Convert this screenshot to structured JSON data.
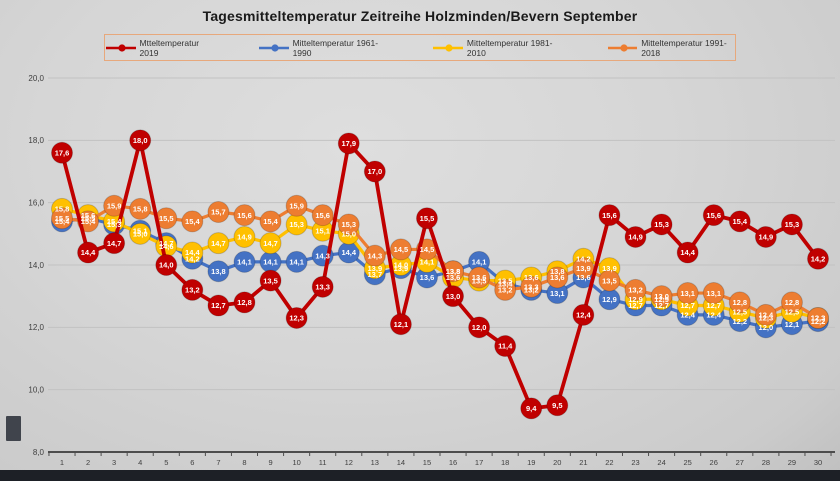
{
  "title": "Tagesmitteltemperatur Zeitreihe Holzminden/Bevern September",
  "colors": {
    "background": "#d6d6d6",
    "gridline": "#c2c2c2",
    "axis": "#4d4d4d",
    "legend_border": "#e7a87c",
    "bottom_bar": "#1d2026"
  },
  "chart_data": {
    "type": "line",
    "title": "Tagesmitteltemperatur Zeitreihe Holzminden/Bevern September",
    "xlabel": "",
    "ylabel": "",
    "x": [
      1,
      2,
      3,
      4,
      5,
      6,
      7,
      8,
      9,
      10,
      11,
      12,
      13,
      14,
      15,
      16,
      17,
      18,
      19,
      20,
      21,
      22,
      23,
      24,
      25,
      26,
      27,
      28,
      29,
      30
    ],
    "ylim": [
      8,
      20
    ],
    "ytick_step": 2,
    "ytick_labels": [
      "8,0",
      "10,0",
      "12,0",
      "14,0",
      "16,0",
      "18,0",
      "20,0"
    ],
    "grid": true,
    "legend_position": "top",
    "decimal_separator": "comma",
    "point_labels": "inside-marker",
    "series": [
      {
        "name": "Mtteltemperatur 2019",
        "color": "#c00000",
        "values": [
          17.6,
          14.4,
          14.7,
          18.0,
          14.0,
          13.2,
          12.7,
          12.8,
          13.5,
          12.3,
          13.3,
          17.9,
          17.0,
          12.1,
          15.5,
          13.0,
          12.0,
          11.4,
          9.4,
          9.5,
          12.4,
          15.6,
          14.9,
          15.3,
          14.4,
          15.6,
          15.4,
          14.9,
          15.3,
          14.2
        ]
      },
      {
        "name": "Mitteltemperatur 1961-1990",
        "color": "#4472c4",
        "values": [
          15.4,
          15.5,
          15.3,
          15.1,
          14.7,
          14.2,
          13.8,
          14.1,
          14.1,
          14.1,
          14.3,
          14.4,
          13.7,
          13.9,
          13.6,
          13.8,
          14.1,
          13.4,
          13.2,
          13.1,
          13.6,
          12.9,
          12.7,
          12.7,
          12.4,
          12.4,
          12.2,
          12.0,
          12.1,
          12.2
        ]
      },
      {
        "name": "Mitteltemperatur 1981-2010",
        "color": "#ffc000",
        "values": [
          15.8,
          15.6,
          15.4,
          15.0,
          14.6,
          14.4,
          14.7,
          14.9,
          14.7,
          15.3,
          15.1,
          15.0,
          13.9,
          14.0,
          14.1,
          13.6,
          13.5,
          13.5,
          13.6,
          13.8,
          14.2,
          13.9,
          12.9,
          12.9,
          12.7,
          12.7,
          12.5,
          12.3,
          12.5,
          12.3
        ]
      },
      {
        "name": "Mitteltemperatur 1991-2018",
        "color": "#ed7d31",
        "values": [
          15.5,
          15.4,
          15.9,
          15.8,
          15.5,
          15.4,
          15.7,
          15.6,
          15.4,
          15.9,
          15.6,
          15.3,
          14.3,
          14.5,
          14.5,
          13.8,
          13.6,
          13.2,
          13.3,
          13.6,
          13.9,
          13.5,
          13.2,
          13.0,
          13.1,
          13.1,
          12.8,
          12.4,
          12.8,
          12.3
        ]
      }
    ]
  }
}
